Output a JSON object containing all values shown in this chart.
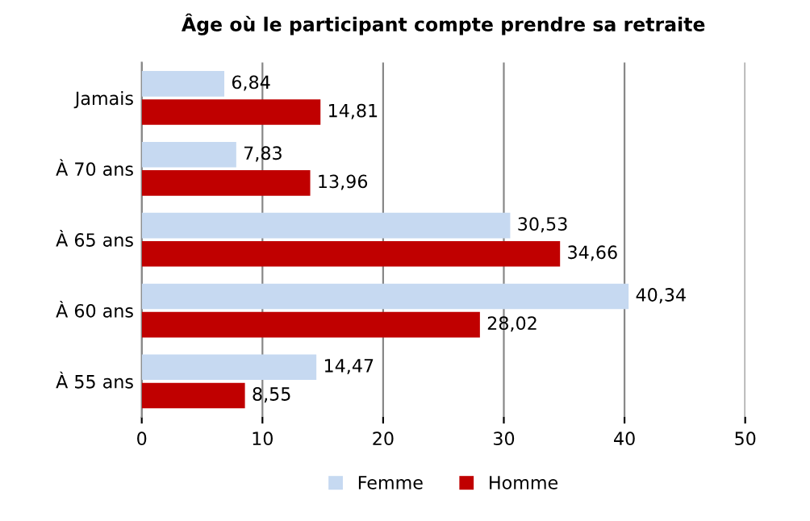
{
  "chart_data": {
    "type": "bar",
    "orientation": "horizontal",
    "title": "Âge où le participant compte prendre sa retraite",
    "categories": [
      "Jamais",
      "À 70 ans",
      "À 65 ans",
      "À 60 ans",
      "À 55 ans"
    ],
    "series": [
      {
        "name": "Femme",
        "color": "#c6d9f1",
        "values": [
          6.84,
          7.83,
          30.53,
          40.34,
          14.47
        ],
        "value_labels": [
          "6,84",
          "7,83",
          "30,53",
          "40,34",
          "14,47"
        ]
      },
      {
        "name": "Homme",
        "color": "#c00000",
        "values": [
          14.81,
          13.96,
          34.66,
          28.02,
          8.55
        ],
        "value_labels": [
          "14,81",
          "13,96",
          "34,66",
          "28,02",
          "8,55"
        ]
      }
    ],
    "xlim": [
      0,
      50
    ],
    "xticks": [
      0,
      10,
      20,
      30,
      40,
      50
    ],
    "grid": "x",
    "legend": "bottom"
  }
}
